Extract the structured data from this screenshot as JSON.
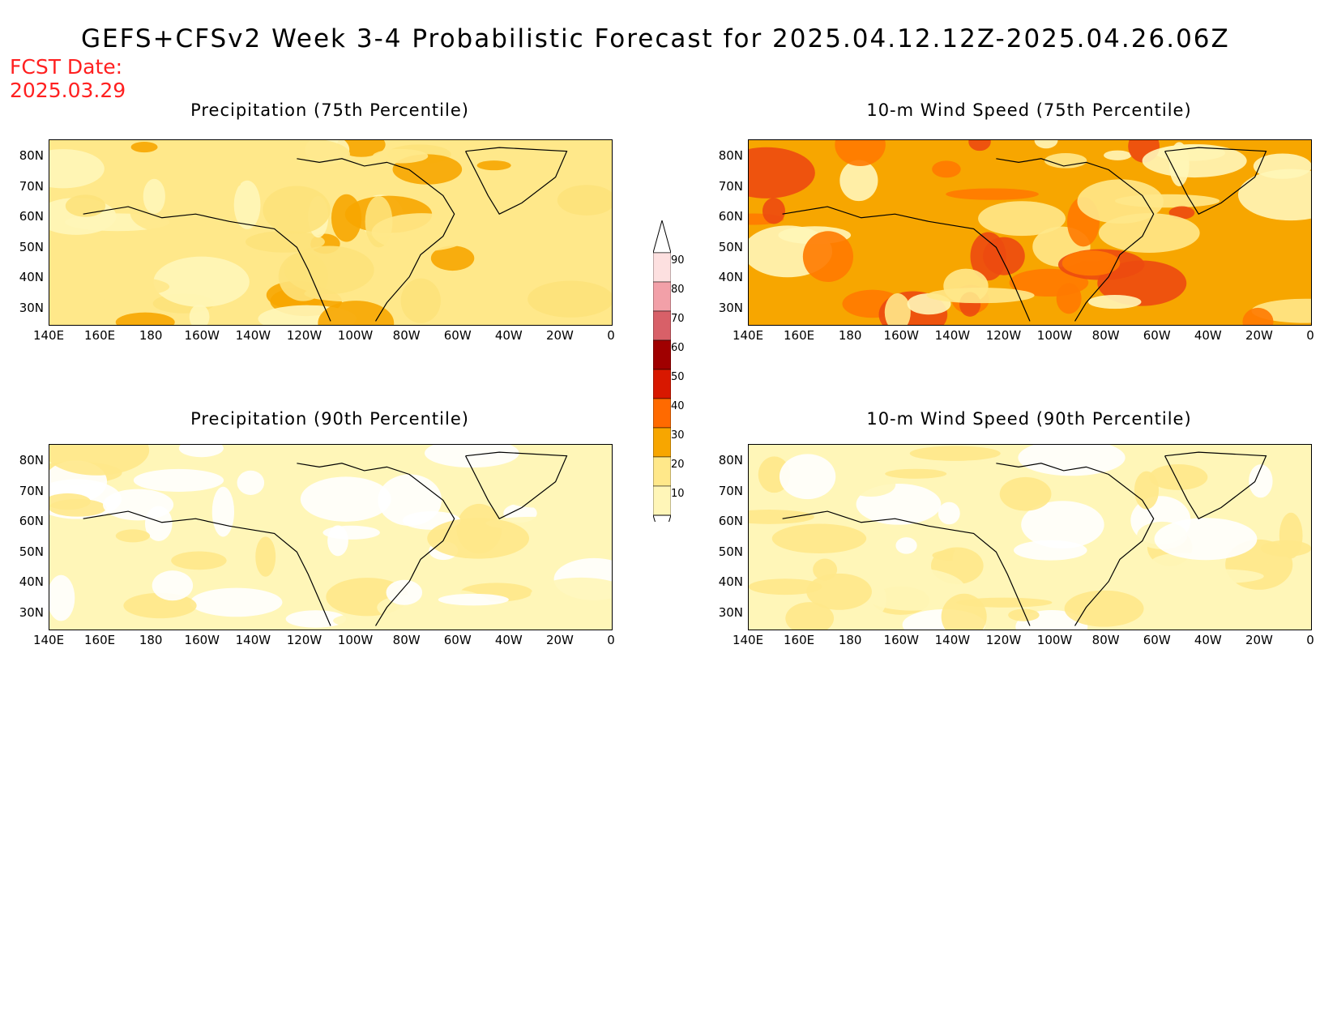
{
  "title": "GEFS+CFSv2 Week 3-4 Probabilistic Forecast for 2025.04.12.12Z-2025.04.26.06Z",
  "fcst_date_label": "FCST Date:",
  "fcst_date": "2025.03.29",
  "panels": [
    {
      "title": "Precipitation (75th Percentile)",
      "base": "#ffe88a",
      "spots": [
        "#f7a600",
        "#ffe88a",
        "#fff6b8",
        "#fde27a"
      ]
    },
    {
      "title": "10-m Wind Speed (75th Percentile)",
      "base": "#f7a600",
      "spots": [
        "#ff7a00",
        "#ffe88a",
        "#ec4a10",
        "#fff6b8"
      ]
    },
    {
      "title": "Precipitation (90th Percentile)",
      "base": "#fff6b8",
      "spots": [
        "#ffffff",
        "#ffe88a",
        "#ffffff",
        "#fff6b8"
      ]
    },
    {
      "title": "10-m Wind Speed (90th Percentile)",
      "base": "#fff6b8",
      "spots": [
        "#ffe88a",
        "#ffffff",
        "#fff6b8",
        "#ffe88a"
      ]
    }
  ],
  "lat_labels": [
    "80N",
    "70N",
    "60N",
    "50N",
    "40N",
    "30N"
  ],
  "lon_labels": [
    "140E",
    "160E",
    "180",
    "160W",
    "140W",
    "120W",
    "100W",
    "80W",
    "60W",
    "40W",
    "20W",
    "0"
  ],
  "colorbar": {
    "levels": [
      "90",
      "80",
      "70",
      "60",
      "50",
      "40",
      "30",
      "20",
      "10"
    ],
    "colors": [
      "#fde0e0",
      "#f2a0a8",
      "#d86068",
      "#a00000",
      "#d81800",
      "#ff6a00",
      "#f7a600",
      "#ffe88a",
      "#fff6b8"
    ]
  }
}
